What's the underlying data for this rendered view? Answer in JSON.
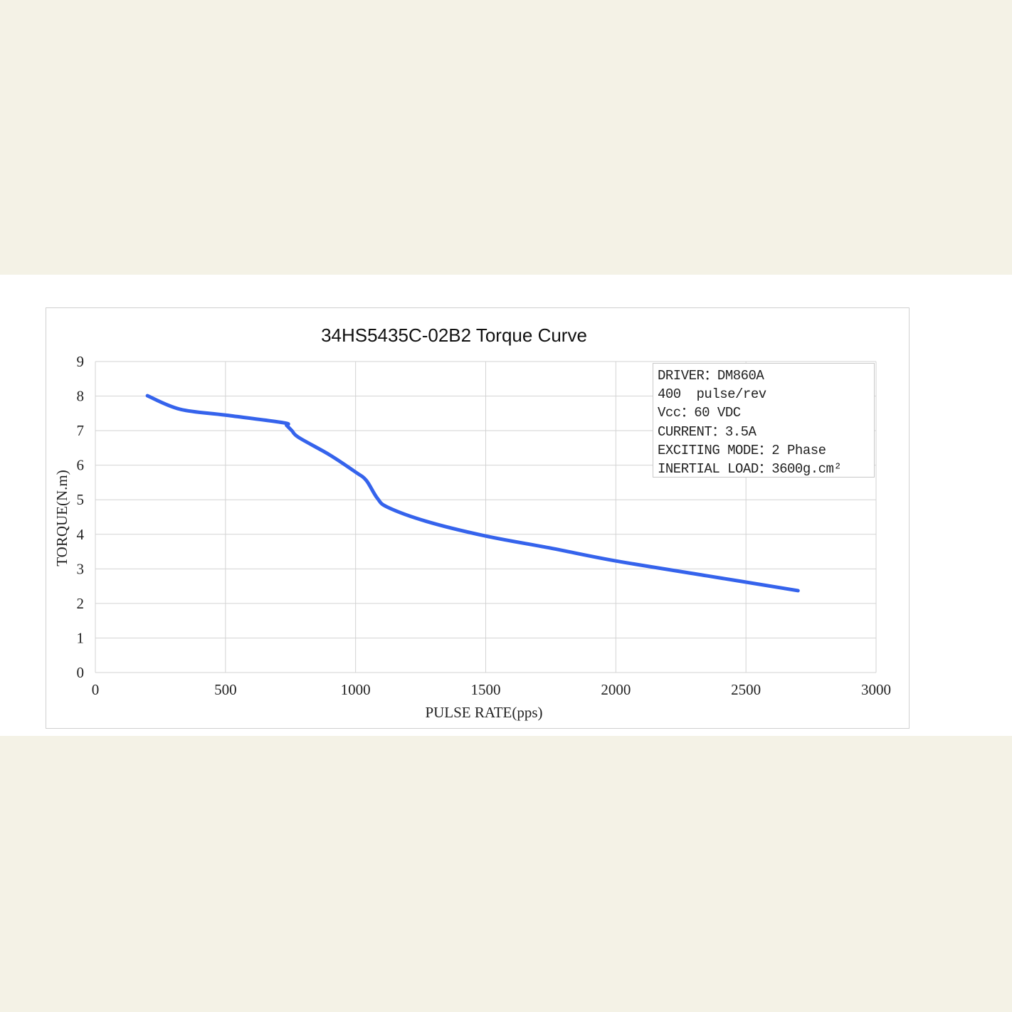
{
  "chart_data": {
    "type": "line",
    "title": "34HS5435C-02B2 Torque Curve",
    "xlabel": "PULSE RATE(pps)",
    "ylabel": "TORQUE(N.m)",
    "xlim": [
      0,
      3000
    ],
    "ylim": [
      0,
      9
    ],
    "xticks": [
      0,
      500,
      1000,
      1500,
      2000,
      2500,
      3000
    ],
    "yticks": [
      0,
      1,
      2,
      3,
      4,
      5,
      6,
      7,
      8,
      9
    ],
    "grid": true,
    "series": [
      {
        "color": "#3563ec",
        "x": [
          200,
          325,
          500,
          722,
          735,
          755,
          782,
          900,
          1000,
          1041,
          1083,
          1124,
          1274,
          1500,
          1750,
          2000,
          2350,
          2700
        ],
        "y": [
          8.01,
          7.62,
          7.45,
          7.23,
          7.15,
          7.0,
          6.8,
          6.3,
          5.8,
          5.56,
          5.05,
          4.78,
          4.37,
          3.95,
          3.6,
          3.23,
          2.8,
          2.37
        ]
      }
    ],
    "annotations": [
      "DRIVER：DM860A",
      "400  pulse/rev",
      "Vcc：60 VDC",
      "CURRENT：3.5A",
      "EXCITING MODE：2 Phase",
      "INERTIAL LOAD：3600g.cm²"
    ]
  },
  "colors": {
    "background": "#f4f2e6",
    "grid": "#d3d3d3",
    "line": "#3563ec"
  }
}
